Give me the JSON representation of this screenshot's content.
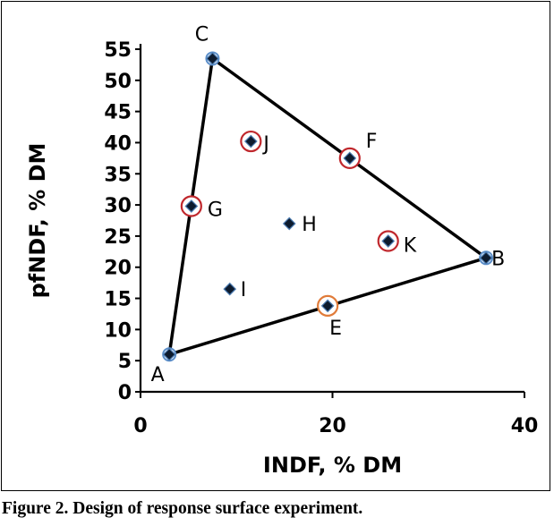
{
  "caption": "Figure 2. Design of response surface experiment.",
  "chart_data": {
    "type": "scatter",
    "xlabel": "INDF, % DM",
    "ylabel": "pfNDF, % DM",
    "xlim": [
      0,
      40
    ],
    "ylim": [
      0,
      55
    ],
    "x_ticks": [
      0,
      20,
      40
    ],
    "y_ticks": [
      0,
      5,
      10,
      15,
      20,
      25,
      30,
      35,
      40,
      45,
      50,
      55
    ],
    "grid": false,
    "triangle": [
      "A",
      "B",
      "C"
    ],
    "points": [
      {
        "label": "A",
        "x": 3.0,
        "y": 6.0,
        "ring": "blue"
      },
      {
        "label": "B",
        "x": 36.0,
        "y": 21.5,
        "ring": "blue"
      },
      {
        "label": "C",
        "x": 7.5,
        "y": 53.5,
        "ring": "blue"
      },
      {
        "label": "E",
        "x": 19.5,
        "y": 13.8,
        "ring": "orange"
      },
      {
        "label": "F",
        "x": 21.8,
        "y": 37.5,
        "ring": "red"
      },
      {
        "label": "G",
        "x": 5.3,
        "y": 29.8,
        "ring": "red"
      },
      {
        "label": "H",
        "x": 15.5,
        "y": 27.0,
        "ring": "none"
      },
      {
        "label": "I",
        "x": 9.3,
        "y": 16.5,
        "ring": "none"
      },
      {
        "label": "J",
        "x": 11.5,
        "y": 40.2,
        "ring": "red"
      },
      {
        "label": "K",
        "x": 25.8,
        "y": 24.2,
        "ring": "red"
      }
    ],
    "colors": {
      "line": "#000000",
      "marker_fill": "#0d1b2e",
      "marker_edge": "#4a7ab0",
      "ring_red": "#c0282d",
      "ring_orange": "#e07b39",
      "ring_blue": "#5b8ec9"
    }
  }
}
